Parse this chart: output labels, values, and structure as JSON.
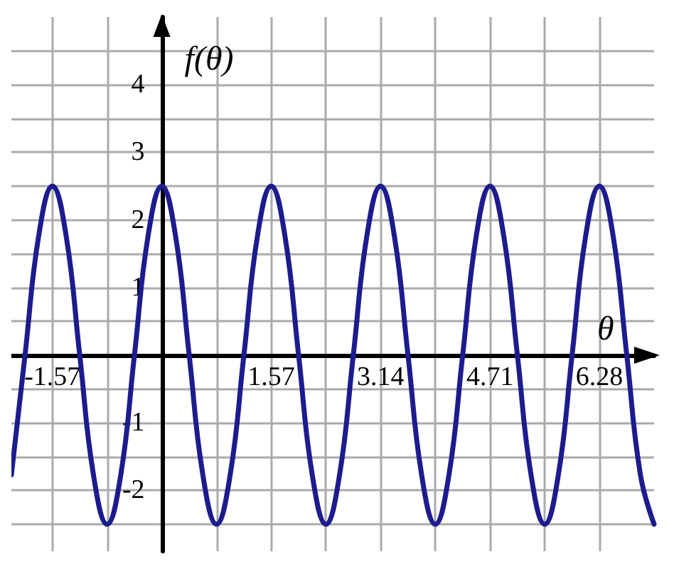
{
  "chart_data": {
    "type": "line",
    "xlabel": "θ",
    "ylabel": "f(θ)",
    "xlim": [
      -2.159,
      7.065
    ],
    "ylim": [
      -2.9,
      5
    ],
    "xticks": [
      -1.57,
      {
        "value": -0.785,
        "label": null
      },
      {
        "value": 0,
        "label": null
      },
      {
        "value": 0.785,
        "label": null
      },
      1.57,
      {
        "value": 2.355,
        "label": null
      },
      3.14,
      {
        "value": 3.925,
        "label": null
      },
      4.71,
      {
        "value": 5.495,
        "label": null
      },
      6.28
    ],
    "yticks": [
      {
        "value": -2.5,
        "label": null
      },
      -2,
      {
        "value": -1.5,
        "label": null
      },
      -1,
      {
        "value": -0.5,
        "label": null
      },
      {
        "value": 0,
        "label": null
      },
      {
        "value": 0.5,
        "label": null
      },
      1,
      {
        "value": 1.5,
        "label": null
      },
      2,
      {
        "value": 2.5,
        "label": null
      },
      3,
      {
        "value": 3.5,
        "label": null
      },
      4,
      {
        "value": 4.5,
        "label": null
      }
    ],
    "grid": true,
    "marker": "none",
    "line_style": "solid",
    "series": [
      {
        "color": "#1c1c8e",
        "x": [
          -2.159,
          -1.963,
          -1.766,
          -1.57,
          -1.374,
          -1.178,
          -0.981,
          -0.785,
          -0.589,
          -0.393,
          -0.196,
          0,
          0.196,
          0.393,
          0.589,
          0.785,
          0.981,
          1.178,
          1.374,
          1.57,
          1.766,
          1.963,
          2.159,
          2.355,
          2.551,
          2.748,
          2.944,
          3.14,
          3.336,
          3.533,
          3.729,
          3.925,
          4.121,
          4.318,
          4.514,
          4.71,
          4.906,
          5.103,
          5.299,
          5.495,
          5.691,
          5.888,
          6.084,
          6.28,
          6.476,
          6.673,
          6.869,
          7.065
        ],
        "values": [
          -1.77,
          0,
          1.77,
          2.5,
          1.77,
          0,
          -1.77,
          -2.5,
          -1.77,
          0,
          1.77,
          2.5,
          1.77,
          0,
          -1.77,
          -2.5,
          -1.77,
          0,
          1.77,
          2.5,
          1.77,
          0,
          -1.77,
          -2.5,
          -1.77,
          0,
          1.77,
          2.5,
          1.77,
          0,
          -1.77,
          -2.5,
          -1.77,
          0,
          1.77,
          2.5,
          1.77,
          0,
          -1.77,
          -2.5,
          -1.77,
          0,
          1.77,
          2.5,
          1.77,
          0,
          -1.77,
          -2.5
        ]
      }
    ]
  }
}
